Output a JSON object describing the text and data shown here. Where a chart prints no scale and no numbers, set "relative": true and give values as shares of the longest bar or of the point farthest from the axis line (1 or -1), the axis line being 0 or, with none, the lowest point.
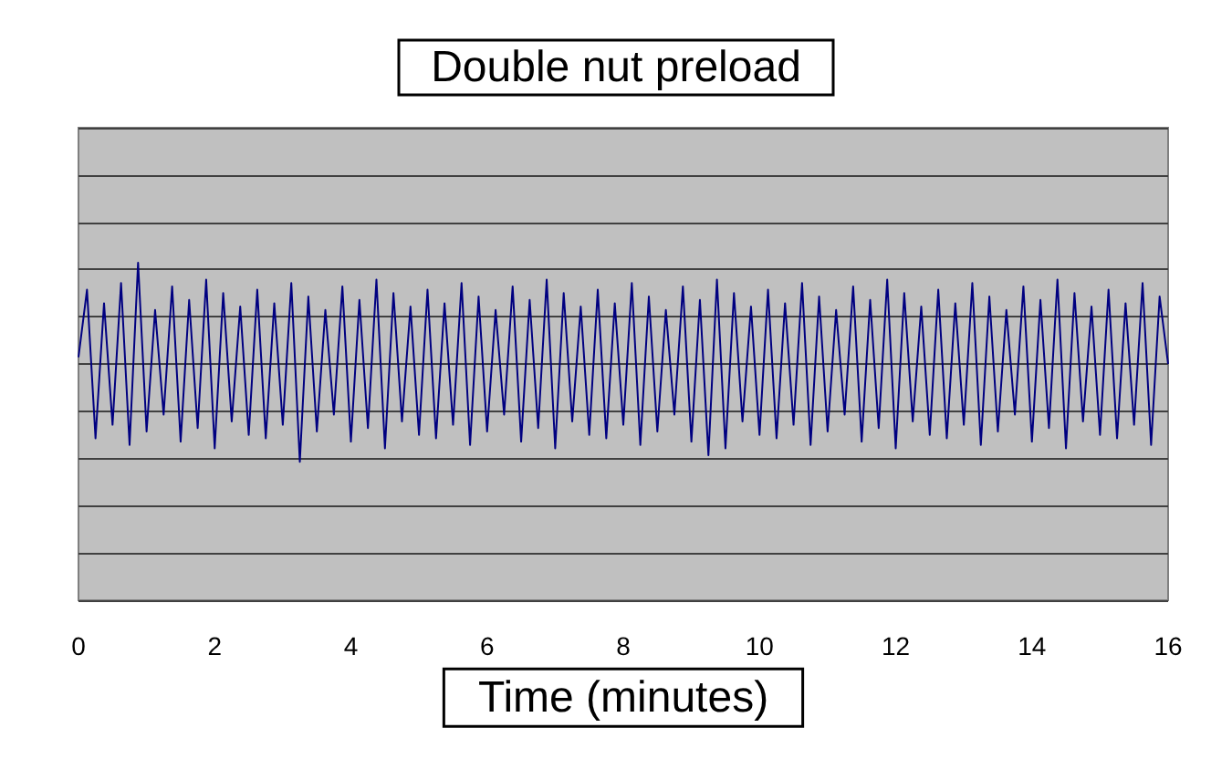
{
  "chart_data": {
    "type": "line",
    "title": "Double nut preload",
    "xlabel": "Time (minutes)",
    "relative": true,
    "grid": "y",
    "xlim": [
      0,
      16
    ],
    "xticks": [
      0,
      2,
      4,
      6,
      8,
      10,
      12,
      14,
      16
    ],
    "x": [
      0,
      0.125,
      0.25,
      0.375,
      0.5,
      0.625,
      0.75,
      0.875,
      1,
      1.125,
      1.25,
      1.375,
      1.5,
      1.625,
      1.75,
      1.875,
      2,
      2.125,
      2.25,
      2.375,
      2.5,
      2.625,
      2.75,
      2.875,
      3,
      3.125,
      3.25,
      3.375,
      3.5,
      3.625,
      3.75,
      3.875,
      4,
      4.125,
      4.25,
      4.375,
      4.5,
      4.625,
      4.75,
      4.875,
      5,
      5.125,
      5.25,
      5.375,
      5.5,
      5.625,
      5.75,
      5.875,
      6,
      6.125,
      6.25,
      6.375,
      6.5,
      6.625,
      6.75,
      6.875,
      7,
      7.125,
      7.25,
      7.375,
      7.5,
      7.625,
      7.75,
      7.875,
      8,
      8.125,
      8.25,
      8.375,
      8.5,
      8.625,
      8.75,
      8.875,
      9,
      9.125,
      9.25,
      9.375,
      9.5,
      9.625,
      9.75,
      9.875,
      10,
      10.125,
      10.25,
      10.375,
      10.5,
      10.625,
      10.75,
      10.875,
      11,
      11.125,
      11.25,
      11.375,
      11.5,
      11.625,
      11.75,
      11.875,
      12,
      12.125,
      12.25,
      12.375,
      12.5,
      12.625,
      12.75,
      12.875,
      13,
      13.125,
      13.25,
      13.375,
      13.5,
      13.625,
      13.75,
      13.875,
      14,
      14.125,
      14.25,
      14.375,
      14.5,
      14.625,
      14.75,
      14.875,
      15,
      15.125,
      15.25,
      15.375,
      15.5,
      15.625,
      15.75,
      15.875,
      16
    ],
    "series": [
      {
        "color": "#000080",
        "values": [
          0.72,
          0.92,
          0.48,
          0.88,
          0.52,
          0.94,
          0.46,
          1.0,
          0.5,
          0.86,
          0.55,
          0.93,
          0.47,
          0.89,
          0.51,
          0.95,
          0.45,
          0.91,
          0.53,
          0.87,
          0.49,
          0.92,
          0.48,
          0.88,
          0.52,
          0.94,
          0.41,
          0.9,
          0.5,
          0.86,
          0.55,
          0.93,
          0.47,
          0.89,
          0.51,
          0.95,
          0.45,
          0.91,
          0.53,
          0.87,
          0.49,
          0.92,
          0.48,
          0.88,
          0.52,
          0.94,
          0.46,
          0.9,
          0.5,
          0.86,
          0.55,
          0.93,
          0.47,
          0.89,
          0.51,
          0.95,
          0.45,
          0.91,
          0.53,
          0.87,
          0.49,
          0.92,
          0.48,
          0.88,
          0.52,
          0.94,
          0.46,
          0.9,
          0.5,
          0.86,
          0.55,
          0.93,
          0.47,
          0.89,
          0.43,
          0.95,
          0.45,
          0.91,
          0.53,
          0.87,
          0.49,
          0.92,
          0.48,
          0.88,
          0.52,
          0.94,
          0.46,
          0.9,
          0.5,
          0.86,
          0.55,
          0.93,
          0.47,
          0.89,
          0.51,
          0.95,
          0.45,
          0.91,
          0.53,
          0.87,
          0.49,
          0.92,
          0.48,
          0.88,
          0.52,
          0.94,
          0.46,
          0.9,
          0.5,
          0.86,
          0.55,
          0.93,
          0.47,
          0.89,
          0.51,
          0.95,
          0.45,
          0.91,
          0.53,
          0.87,
          0.49,
          0.92,
          0.48,
          0.88,
          0.52,
          0.94,
          0.46,
          0.9,
          0.7
        ]
      }
    ]
  }
}
